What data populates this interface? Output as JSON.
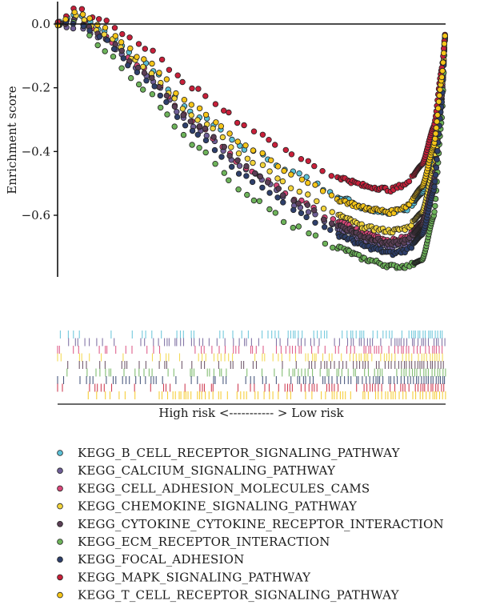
{
  "chart_data": {
    "type": "scatter",
    "title": "",
    "ylabel": "Enrichment score",
    "xlabel": "High risk <----------- > Low risk",
    "ylim": [
      -0.78,
      0.07
    ],
    "yticks": [
      {
        "value": 0.0,
        "label": "0.0"
      },
      {
        "value": -0.2,
        "label": "−0.2"
      },
      {
        "value": -0.4,
        "label": "−0.4"
      },
      {
        "value": -0.6,
        "label": "−0.6"
      }
    ],
    "xlim": [
      0,
      1
    ],
    "zero_line": true,
    "grid": false,
    "legend_position": "bottom",
    "series": [
      {
        "name": "KEGG_B_CELL_RECEPTOR_SIGNALING_PATHWAY",
        "color": "#5bc0d6",
        "points": [
          [
            0,
            0
          ],
          [
            0.05,
            0.03
          ],
          [
            0.12,
            -0.02
          ],
          [
            0.22,
            -0.12
          ],
          [
            0.35,
            -0.28
          ],
          [
            0.5,
            -0.4
          ],
          [
            0.62,
            -0.47
          ],
          [
            0.72,
            -0.54
          ],
          [
            0.8,
            -0.58
          ],
          [
            0.86,
            -0.59
          ],
          [
            0.9,
            -0.58
          ],
          [
            0.94,
            -0.53
          ],
          [
            0.97,
            -0.4
          ],
          [
            0.99,
            -0.18
          ],
          [
            1.0,
            -0.02
          ]
        ]
      },
      {
        "name": "KEGG_CALCIUM_SIGNALING_PATHWAY",
        "color": "#6e5e97",
        "points": [
          [
            0,
            0
          ],
          [
            0.05,
            -0.01
          ],
          [
            0.12,
            -0.05
          ],
          [
            0.22,
            -0.15
          ],
          [
            0.35,
            -0.32
          ],
          [
            0.5,
            -0.47
          ],
          [
            0.62,
            -0.57
          ],
          [
            0.72,
            -0.64
          ],
          [
            0.8,
            -0.68
          ],
          [
            0.86,
            -0.7
          ],
          [
            0.9,
            -0.69
          ],
          [
            0.94,
            -0.64
          ],
          [
            0.97,
            -0.5
          ],
          [
            0.99,
            -0.24
          ],
          [
            1.0,
            -0.02
          ]
        ]
      },
      {
        "name": "KEGG_CELL_ADHESION_MOLECULES_CAMS",
        "color": "#d9477a",
        "points": [
          [
            0,
            0
          ],
          [
            0.05,
            0.02
          ],
          [
            0.12,
            -0.04
          ],
          [
            0.22,
            -0.14
          ],
          [
            0.35,
            -0.31
          ],
          [
            0.5,
            -0.46
          ],
          [
            0.62,
            -0.55
          ],
          [
            0.72,
            -0.62
          ],
          [
            0.8,
            -0.66
          ],
          [
            0.86,
            -0.68
          ],
          [
            0.9,
            -0.67
          ],
          [
            0.94,
            -0.62
          ],
          [
            0.97,
            -0.48
          ],
          [
            0.99,
            -0.22
          ],
          [
            1.0,
            -0.02
          ]
        ]
      },
      {
        "name": "KEGG_CHEMOKINE_SIGNALING_PATHWAY",
        "color": "#f2d43b",
        "points": [
          [
            0,
            0
          ],
          [
            0.05,
            0.03
          ],
          [
            0.12,
            -0.03
          ],
          [
            0.22,
            -0.13
          ],
          [
            0.35,
            -0.29
          ],
          [
            0.5,
            -0.43
          ],
          [
            0.62,
            -0.52
          ],
          [
            0.72,
            -0.6
          ],
          [
            0.8,
            -0.64
          ],
          [
            0.86,
            -0.65
          ],
          [
            0.9,
            -0.64
          ],
          [
            0.94,
            -0.59
          ],
          [
            0.97,
            -0.45
          ],
          [
            0.99,
            -0.21
          ],
          [
            1.0,
            -0.02
          ]
        ]
      },
      {
        "name": "KEGG_CYTOKINE_CYTOKINE_RECEPTOR_INTERACTION",
        "color": "#5a3e55",
        "points": [
          [
            0,
            0
          ],
          [
            0.05,
            0.01
          ],
          [
            0.12,
            -0.04
          ],
          [
            0.22,
            -0.15
          ],
          [
            0.35,
            -0.31
          ],
          [
            0.5,
            -0.46
          ],
          [
            0.62,
            -0.56
          ],
          [
            0.72,
            -0.63
          ],
          [
            0.8,
            -0.67
          ],
          [
            0.86,
            -0.69
          ],
          [
            0.9,
            -0.68
          ],
          [
            0.94,
            -0.63
          ],
          [
            0.97,
            -0.49
          ],
          [
            0.99,
            -0.23
          ],
          [
            1.0,
            -0.02
          ]
        ]
      },
      {
        "name": "KEGG_ECM_RECEPTOR_INTERACTION",
        "color": "#6db35a",
        "points": [
          [
            0,
            0
          ],
          [
            0.05,
            0.01
          ],
          [
            0.12,
            -0.08
          ],
          [
            0.22,
            -0.2
          ],
          [
            0.35,
            -0.38
          ],
          [
            0.5,
            -0.55
          ],
          [
            0.62,
            -0.64
          ],
          [
            0.72,
            -0.7
          ],
          [
            0.8,
            -0.74
          ],
          [
            0.86,
            -0.76
          ],
          [
            0.9,
            -0.76
          ],
          [
            0.94,
            -0.74
          ],
          [
            0.97,
            -0.6
          ],
          [
            0.99,
            -0.3
          ],
          [
            1.0,
            -0.02
          ]
        ]
      },
      {
        "name": "KEGG_FOCAL_ADHESION",
        "color": "#2e3f6b",
        "points": [
          [
            0,
            0
          ],
          [
            0.05,
            0.0
          ],
          [
            0.12,
            -0.05
          ],
          [
            0.22,
            -0.17
          ],
          [
            0.35,
            -0.34
          ],
          [
            0.5,
            -0.49
          ],
          [
            0.62,
            -0.59
          ],
          [
            0.72,
            -0.66
          ],
          [
            0.8,
            -0.7
          ],
          [
            0.86,
            -0.72
          ],
          [
            0.9,
            -0.71
          ],
          [
            0.94,
            -0.66
          ],
          [
            0.97,
            -0.52
          ],
          [
            0.99,
            -0.25
          ],
          [
            1.0,
            -0.02
          ]
        ]
      },
      {
        "name": "KEGG_MAPK_SIGNALING_PATHWAY",
        "color": "#c8203a",
        "points": [
          [
            0,
            0
          ],
          [
            0.05,
            0.05
          ],
          [
            0.12,
            0.01
          ],
          [
            0.22,
            -0.07
          ],
          [
            0.35,
            -0.2
          ],
          [
            0.5,
            -0.33
          ],
          [
            0.62,
            -0.42
          ],
          [
            0.72,
            -0.48
          ],
          [
            0.8,
            -0.51
          ],
          [
            0.86,
            -0.52
          ],
          [
            0.9,
            -0.5
          ],
          [
            0.94,
            -0.44
          ],
          [
            0.97,
            -0.32
          ],
          [
            0.99,
            -0.14
          ],
          [
            1.0,
            -0.02
          ]
        ]
      },
      {
        "name": "KEGG_T_CELL_RECEPTOR_SIGNALING_PATHWAY",
        "color": "#f5c518",
        "points": [
          [
            0,
            0
          ],
          [
            0.05,
            0.04
          ],
          [
            0.12,
            -0.01
          ],
          [
            0.22,
            -0.11
          ],
          [
            0.35,
            -0.26
          ],
          [
            0.5,
            -0.39
          ],
          [
            0.62,
            -0.48
          ],
          [
            0.72,
            -0.55
          ],
          [
            0.8,
            -0.58
          ],
          [
            0.86,
            -0.59
          ],
          [
            0.9,
            -0.57
          ],
          [
            0.94,
            -0.51
          ],
          [
            0.97,
            -0.38
          ],
          [
            0.99,
            -0.17
          ],
          [
            1.0,
            -0.02
          ]
        ]
      }
    ]
  }
}
